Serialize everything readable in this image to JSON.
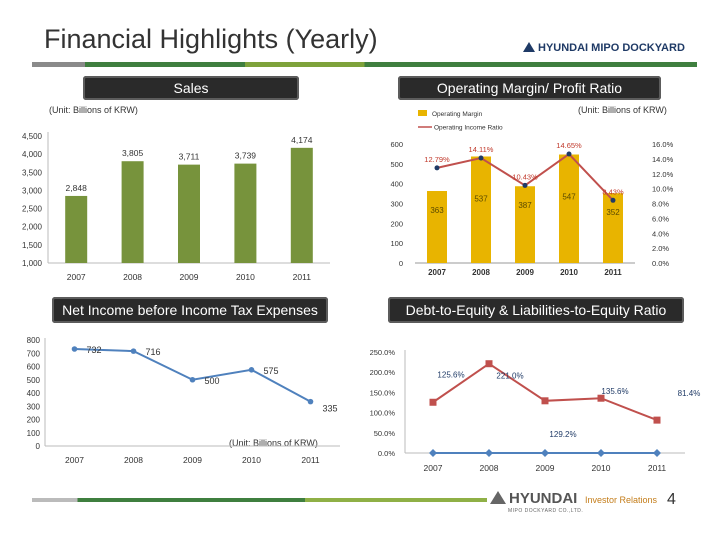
{
  "header": {
    "title": "Financial Highlights (Yearly)",
    "brand": "HYUNDAI MIPO DOCKYARD"
  },
  "footer": {
    "brand": "HYUNDAI",
    "brand_sub": "MIPO DOCKYARD CO.,LTD.",
    "ir_label": "Investor Relations",
    "page_number": "4"
  },
  "colors": {
    "bar_green": "#77933c",
    "bar_gold": "#e8b400",
    "line_red": "#c0504d",
    "line_blue": "#4f81bd",
    "line_navy": "#1f3a66"
  },
  "chart_data": [
    {
      "id": "sales",
      "type": "bar",
      "title": "Sales",
      "unit": "(Unit: Billions of KRW)",
      "categories": [
        "2007",
        "2008",
        "2009",
        "2010",
        "2011"
      ],
      "values": [
        2848,
        3805,
        3711,
        3739,
        4174
      ],
      "value_labels": [
        "2,848",
        "3,805",
        "3,711",
        "3,739",
        "4,174"
      ],
      "ylim": [
        1000,
        4500
      ],
      "yticks": [
        "1,000",
        "1,500",
        "2,000",
        "2,500",
        "3,000",
        "3,500",
        "4,000",
        "4,500"
      ]
    },
    {
      "id": "operating",
      "type": "bar+line",
      "title": "Operating Margin/ Profit Ratio",
      "unit": "(Unit: Billions of KRW)",
      "legend": [
        "Operating Margin",
        "Operating Income Ratio"
      ],
      "categories": [
        "2007",
        "2008",
        "2009",
        "2010",
        "2011"
      ],
      "bar_values": [
        363,
        537,
        387,
        547,
        352
      ],
      "line_values": [
        12.79,
        14.11,
        10.43,
        14.65,
        8.43
      ],
      "line_labels": [
        "12.79%",
        "14.11%",
        "10.43%",
        "14.65%",
        "8.43%"
      ],
      "ylim_left": [
        0,
        600
      ],
      "yticks_left": [
        "0",
        "100",
        "200",
        "300",
        "400",
        "500",
        "600"
      ],
      "ylim_right": [
        0,
        16
      ],
      "yticks_right": [
        "0.0%",
        "2.0%",
        "4.0%",
        "6.0%",
        "8.0%",
        "10.0%",
        "12.0%",
        "14.0%",
        "16.0%"
      ]
    },
    {
      "id": "net_income",
      "type": "line",
      "title": "Net Income before Income Tax Expenses",
      "unit": "(Unit: Billions of KRW)",
      "categories": [
        "2007",
        "2008",
        "2009",
        "2010",
        "2011"
      ],
      "values": [
        732,
        716,
        500,
        575,
        335
      ],
      "value_labels": [
        "732",
        "716",
        "500",
        "575",
        "335"
      ],
      "ylim": [
        0,
        800
      ],
      "yticks": [
        "0",
        "100",
        "200",
        "300",
        "400",
        "500",
        "600",
        "700",
        "800"
      ]
    },
    {
      "id": "debt_equity",
      "type": "line",
      "title": "Debt-to-Equity & Liabilities-to-Equity Ratio",
      "categories": [
        "2007",
        "2008",
        "2009",
        "2010",
        "2011"
      ],
      "series": [
        {
          "name": "Liabilities-to-Equity",
          "values": [
            125.6,
            221.0,
            129.2,
            135.6,
            81.4
          ]
        },
        {
          "name": "Debt-to-Equity",
          "values": [
            0,
            0,
            0,
            0,
            0
          ]
        }
      ],
      "value_labels": [
        "125.6%",
        "221.0%",
        "129.2%",
        "135.6%",
        "81.4%"
      ],
      "ylim": [
        0,
        250
      ],
      "yticks": [
        "0.0%",
        "50.0%",
        "100.0%",
        "150.0%",
        "200.0%",
        "250.0%"
      ]
    }
  ]
}
